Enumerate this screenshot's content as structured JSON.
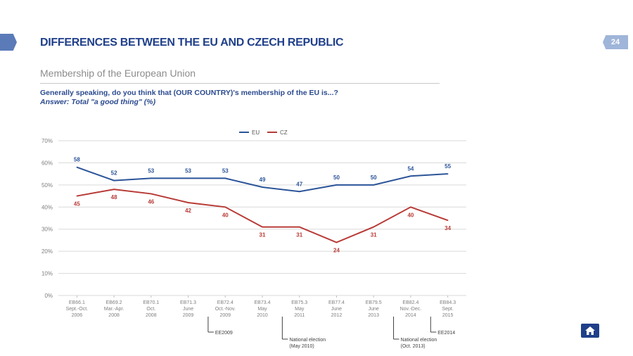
{
  "header": {
    "title": "DIFFERENCES BETWEEN THE EU AND CZECH REPUBLIC",
    "page_number": "24",
    "subtitle": "Membership of the European Union",
    "question": "Generally speaking, do you think that (OUR COUNTRY)'s membership of the EU is...?",
    "answer": "Answer: Total \"a good thing\" (%)"
  },
  "chart_data": {
    "type": "line",
    "ylim": [
      0,
      70
    ],
    "y_ticks": [
      "0%",
      "10%",
      "20%",
      "30%",
      "40%",
      "50%",
      "60%",
      "70%"
    ],
    "grid": true,
    "legend_placement": "top-center",
    "categories": [
      [
        "EB66.1",
        "Sept.-Oct.",
        "2006"
      ],
      [
        "EB69.2",
        "Mar.-Apr.",
        "2008"
      ],
      [
        "EB70.1",
        "Oct.",
        "2008"
      ],
      [
        "EB71.3",
        "June",
        "2009"
      ],
      [
        "EB72.4",
        "Oct.-Nov.",
        "2009"
      ],
      [
        "EB73.4",
        "May",
        "2010"
      ],
      [
        "EB75.3",
        "May",
        "2011"
      ],
      [
        "EB77.4",
        "June",
        "2012"
      ],
      [
        "EB79.5",
        "June",
        "2013"
      ],
      [
        "EB82.4",
        "Nov.-Dec.",
        "2014"
      ],
      [
        "EB84.3",
        "Sept.",
        "2015"
      ]
    ],
    "series": [
      {
        "name": "EU",
        "color": "#2b5499",
        "values": [
          58,
          52,
          53,
          53,
          53,
          49,
          47,
          50,
          50,
          54,
          55
        ]
      },
      {
        "name": "CZ",
        "color": "#b83a36",
        "values": [
          45,
          48,
          46,
          42,
          40,
          31,
          31,
          24,
          31,
          40,
          34
        ]
      }
    ],
    "annotations": [
      {
        "after_category": 3,
        "lines": [
          "EE2009"
        ]
      },
      {
        "after_category": 5,
        "lines": [
          "National election",
          "(May 2010)"
        ]
      },
      {
        "after_category": 8,
        "lines": [
          "National election",
          "(Oct. 2013)"
        ]
      },
      {
        "after_category": 9,
        "lines": [
          "EE2014"
        ]
      }
    ]
  }
}
